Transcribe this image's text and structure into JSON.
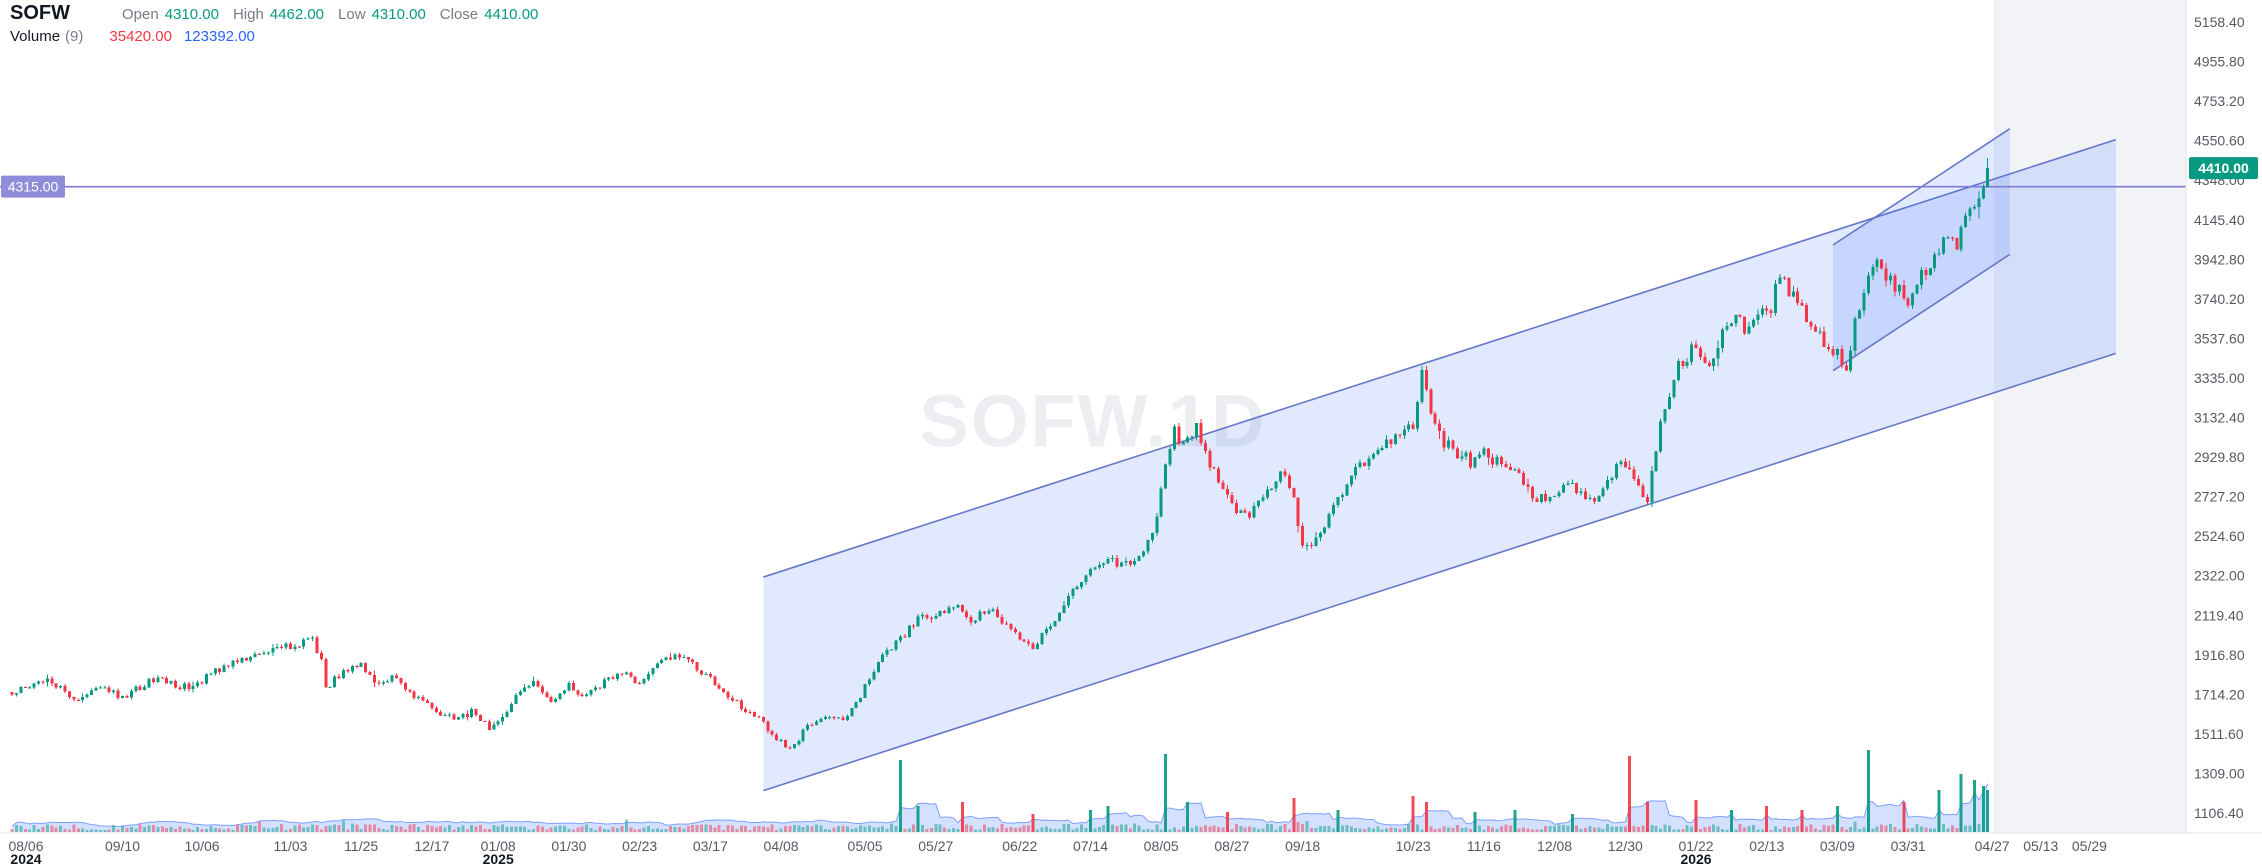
{
  "symbol": "SOFW",
  "watermark": "SOFW.1D",
  "legend": {
    "open_label": "Open",
    "open": "4310.00",
    "high_label": "High",
    "high": "4462.00",
    "low_label": "Low",
    "low": "4310.00",
    "close_label": "Close",
    "close": "4410.00",
    "volume_label": "Volume",
    "volume_param": "(9)",
    "volume_value_red": "35420.00",
    "volume_value_blue": "123392.00"
  },
  "colors": {
    "up": "#089981",
    "down": "#f23645",
    "axis_text": "#555962",
    "text_dark": "#131722",
    "legend_label": "#787b86",
    "volume_ma": "#2962ff",
    "channel_line": "#6677c8",
    "channel_fill": "#2962ff",
    "hline": "#7e7bd0",
    "hline_label_bg": "#908dd8",
    "last_price_bg": "#089981",
    "future_band": "#f1f3f7",
    "separator": "#e0e3eb",
    "watermark": "#8c95a8"
  },
  "chart_data": {
    "type": "candlestick",
    "symbol": "SOFW",
    "timeframe": "1D",
    "title": "SOFW.1D",
    "last_candle": {
      "open": 4310.0,
      "high": 4462.0,
      "low": 4310.0,
      "close": 4410.0
    },
    "volume_indicator": {
      "length": 9,
      "value_red": 35420.0,
      "value_blue": 123392.0
    },
    "price_axis": {
      "last_price": 4410.0,
      "last_price_label": "4410.00",
      "ticks": [
        5158.4,
        4955.8,
        4753.2,
        4550.6,
        4348.0,
        4145.4,
        3942.8,
        3740.2,
        3537.6,
        3335.0,
        3132.4,
        2929.8,
        2727.2,
        2524.6,
        2322.0,
        2119.4,
        1916.8,
        1714.2,
        1511.6,
        1309.0,
        1106.4
      ]
    },
    "time_axis": {
      "ticks": [
        {
          "label": "08/06",
          "i": 0,
          "year": "2024"
        },
        {
          "label": "09/10",
          "i": 25
        },
        {
          "label": "10/06",
          "i": 43
        },
        {
          "label": "11/03",
          "i": 63
        },
        {
          "label": "11/25",
          "i": 79
        },
        {
          "label": "12/17",
          "i": 95
        },
        {
          "label": "01/08",
          "i": 110,
          "year": "2025"
        },
        {
          "label": "01/30",
          "i": 126
        },
        {
          "label": "02/23",
          "i": 142
        },
        {
          "label": "03/17",
          "i": 158
        },
        {
          "label": "04/08",
          "i": 174
        },
        {
          "label": "05/05",
          "i": 193
        },
        {
          "label": "05/27",
          "i": 209
        },
        {
          "label": "06/22",
          "i": 228
        },
        {
          "label": "07/14",
          "i": 244
        },
        {
          "label": "08/05",
          "i": 260
        },
        {
          "label": "08/27",
          "i": 276
        },
        {
          "label": "09/18",
          "i": 292
        },
        {
          "label": "10/23",
          "i": 317
        },
        {
          "label": "11/16",
          "i": 333
        },
        {
          "label": "12/08",
          "i": 349
        },
        {
          "label": "12/30",
          "i": 365
        },
        {
          "label": "01/22",
          "i": 381,
          "year": "2026"
        },
        {
          "label": "02/13",
          "i": 397
        },
        {
          "label": "03/09",
          "i": 413
        },
        {
          "label": "03/31",
          "i": 429
        },
        {
          "label": "04/27",
          "i": 448
        },
        {
          "label": "05/13",
          "i": 459
        },
        {
          "label": "05/29",
          "i": 470
        }
      ]
    },
    "horizontal_line": {
      "price": 4315.0,
      "label": "4315.00"
    },
    "channels": [
      {
        "start_index": 170,
        "end_index": 476,
        "top_price_start": 2315,
        "top_price_end": 4556,
        "bottom_price_start": 1221,
        "bottom_price_end": 3461
      },
      {
        "start_index": 412,
        "end_index": 452,
        "top_price_start": 4016,
        "top_price_end": 4612,
        "bottom_price_start": 3372,
        "bottom_price_end": 3968
      }
    ],
    "price_path_anchors": [
      [
        0,
        1720
      ],
      [
        8,
        1800
      ],
      [
        14,
        1690
      ],
      [
        20,
        1765
      ],
      [
        25,
        1700
      ],
      [
        32,
        1795
      ],
      [
        40,
        1745
      ],
      [
        46,
        1830
      ],
      [
        52,
        1885
      ],
      [
        58,
        1935
      ],
      [
        64,
        1965
      ],
      [
        68,
        1995
      ],
      [
        70,
        1900
      ],
      [
        71,
        1745
      ],
      [
        75,
        1835
      ],
      [
        79,
        1870
      ],
      [
        83,
        1760
      ],
      [
        87,
        1805
      ],
      [
        91,
        1700
      ],
      [
        95,
        1650
      ],
      [
        100,
        1580
      ],
      [
        104,
        1625
      ],
      [
        108,
        1545
      ],
      [
        110,
        1565
      ],
      [
        114,
        1715
      ],
      [
        118,
        1775
      ],
      [
        122,
        1690
      ],
      [
        126,
        1755
      ],
      [
        130,
        1695
      ],
      [
        134,
        1785
      ],
      [
        138,
        1825
      ],
      [
        142,
        1765
      ],
      [
        146,
        1855
      ],
      [
        150,
        1925
      ],
      [
        153,
        1875
      ],
      [
        156,
        1835
      ],
      [
        158,
        1795
      ],
      [
        162,
        1705
      ],
      [
        166,
        1635
      ],
      [
        170,
        1565
      ],
      [
        173,
        1485
      ],
      [
        176,
        1425
      ],
      [
        180,
        1555
      ],
      [
        184,
        1615
      ],
      [
        188,
        1585
      ],
      [
        191,
        1665
      ],
      [
        193,
        1755
      ],
      [
        197,
        1905
      ],
      [
        201,
        2005
      ],
      [
        205,
        2095
      ],
      [
        209,
        2135
      ],
      [
        213,
        2165
      ],
      [
        217,
        2105
      ],
      [
        221,
        2145
      ],
      [
        225,
        2065
      ],
      [
        228,
        1995
      ],
      [
        231,
        1955
      ],
      [
        234,
        2045
      ],
      [
        237,
        2135
      ],
      [
        240,
        2235
      ],
      [
        244,
        2335
      ],
      [
        248,
        2405
      ],
      [
        252,
        2385
      ],
      [
        256,
        2445
      ],
      [
        259,
        2605
      ],
      [
        261,
        2905
      ],
      [
        263,
        3055
      ],
      [
        265,
        2985
      ],
      [
        268,
        3085
      ],
      [
        271,
        2905
      ],
      [
        274,
        2755
      ],
      [
        276,
        2685
      ],
      [
        280,
        2625
      ],
      [
        284,
        2755
      ],
      [
        288,
        2855
      ],
      [
        290,
        2705
      ],
      [
        292,
        2455
      ],
      [
        296,
        2525
      ],
      [
        300,
        2705
      ],
      [
        304,
        2855
      ],
      [
        308,
        2955
      ],
      [
        312,
        3005
      ],
      [
        315,
        3105
      ],
      [
        317,
        3055
      ],
      [
        319,
        3385
      ],
      [
        321,
        3155
      ],
      [
        324,
        3005
      ],
      [
        327,
        2955
      ],
      [
        330,
        2905
      ],
      [
        333,
        2955
      ],
      [
        336,
        2905
      ],
      [
        339,
        2855
      ],
      [
        342,
        2805
      ],
      [
        345,
        2705
      ],
      [
        349,
        2755
      ],
      [
        352,
        2805
      ],
      [
        355,
        2755
      ],
      [
        358,
        2705
      ],
      [
        361,
        2825
      ],
      [
        365,
        2905
      ],
      [
        368,
        2755
      ],
      [
        370,
        2705
      ],
      [
        373,
        3105
      ],
      [
        376,
        3355
      ],
      [
        379,
        3455
      ],
      [
        381,
        3505
      ],
      [
        384,
        3405
      ],
      [
        387,
        3555
      ],
      [
        390,
        3625
      ],
      [
        393,
        3585
      ],
      [
        396,
        3655
      ],
      [
        398,
        3705
      ],
      [
        400,
        3855
      ],
      [
        403,
        3755
      ],
      [
        406,
        3655
      ],
      [
        409,
        3555
      ],
      [
        412,
        3485
      ],
      [
        413,
        3455
      ],
      [
        415,
        3355
      ],
      [
        417,
        3605
      ],
      [
        419,
        3805
      ],
      [
        422,
        3905
      ],
      [
        425,
        3825
      ],
      [
        428,
        3765
      ],
      [
        429,
        3705
      ],
      [
        432,
        3855
      ],
      [
        435,
        3955
      ],
      [
        438,
        4055
      ],
      [
        440,
        4005
      ],
      [
        442,
        4155
      ],
      [
        444,
        4255
      ],
      [
        446,
        4310
      ],
      [
        447,
        4410
      ]
    ],
    "volume_spikes": [
      [
        201,
        72
      ],
      [
        205,
        26
      ],
      [
        215,
        30
      ],
      [
        231,
        18
      ],
      [
        244,
        22
      ],
      [
        248,
        26
      ],
      [
        261,
        78
      ],
      [
        266,
        30
      ],
      [
        275,
        20
      ],
      [
        290,
        34
      ],
      [
        300,
        22
      ],
      [
        317,
        36
      ],
      [
        320,
        30
      ],
      [
        331,
        20
      ],
      [
        340,
        22
      ],
      [
        353,
        18
      ],
      [
        366,
        76
      ],
      [
        370,
        30
      ],
      [
        381,
        32
      ],
      [
        389,
        22
      ],
      [
        397,
        26
      ],
      [
        405,
        22
      ],
      [
        413,
        26
      ],
      [
        420,
        82
      ],
      [
        428,
        30
      ],
      [
        436,
        42
      ],
      [
        441,
        58
      ],
      [
        444,
        52
      ],
      [
        446,
        46
      ],
      [
        447,
        42
      ]
    ]
  }
}
